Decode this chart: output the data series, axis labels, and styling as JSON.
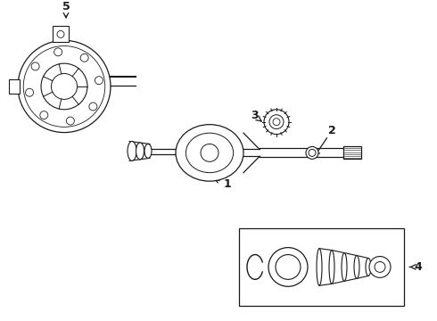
{
  "bg_color": "#ffffff",
  "line_color": "#1a1a1a",
  "fig_width": 4.9,
  "fig_height": 3.6,
  "dpi": 100,
  "xlim": [
    0,
    490
  ],
  "ylim": [
    0,
    360
  ]
}
